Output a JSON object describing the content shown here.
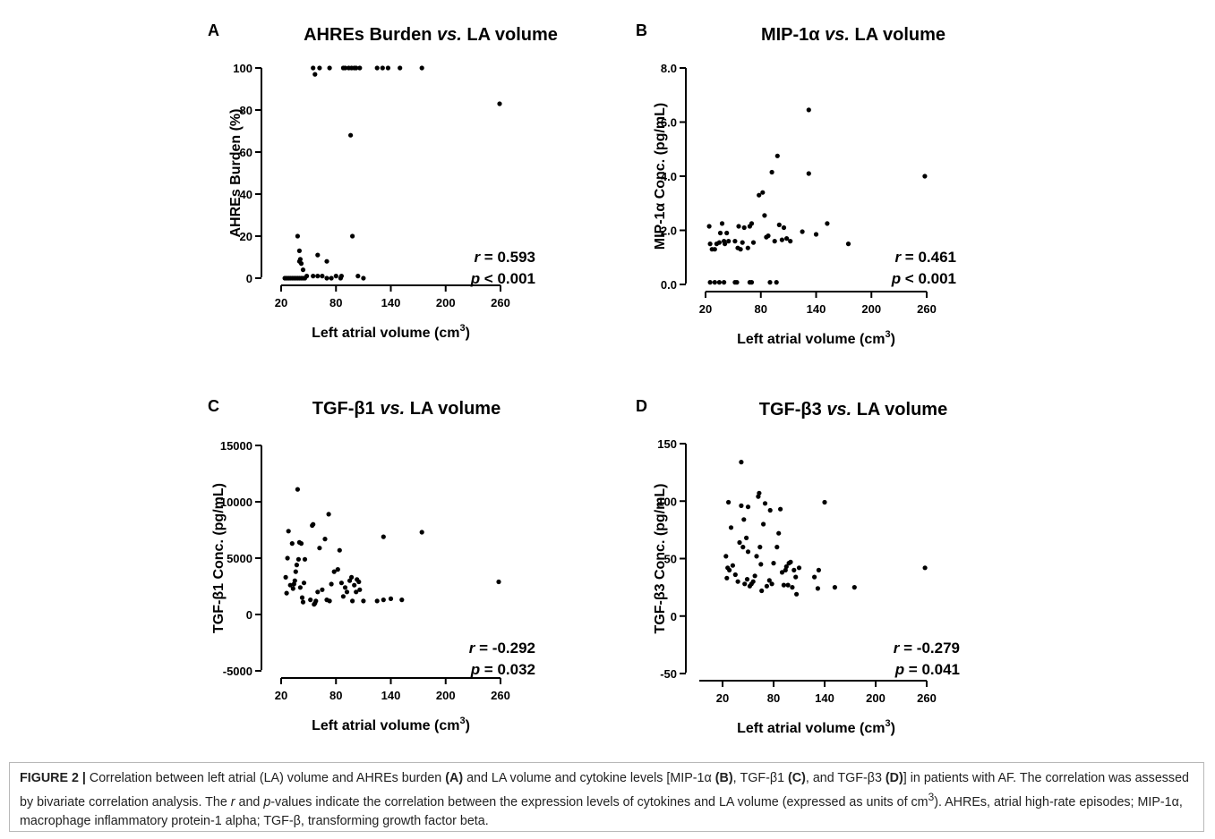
{
  "chart_data": [
    {
      "type": "scatter",
      "letter": "A",
      "title": "AHREs Burden vs. LA volume",
      "title_parts": [
        {
          "t": "AHREs Burden "
        },
        {
          "t": "vs.",
          "i": true
        },
        {
          "t": " LA volume"
        }
      ],
      "xlabel": "Left atrial volume (cm3)",
      "ylabel": "AHREs Burden (%)",
      "xlim": [
        20,
        260
      ],
      "ylim": [
        0,
        100
      ],
      "xticks": [
        "20",
        "80",
        "140",
        "200",
        "260"
      ],
      "yticks": [
        "0",
        "20",
        "40",
        "60",
        "80",
        "100"
      ],
      "r": "0.593",
      "p": "< 0.001",
      "points": [
        [
          24,
          0
        ],
        [
          26,
          0
        ],
        [
          28,
          0
        ],
        [
          30,
          0
        ],
        [
          32,
          0
        ],
        [
          34,
          0
        ],
        [
          36,
          0
        ],
        [
          38,
          0
        ],
        [
          40,
          0
        ],
        [
          42,
          0
        ],
        [
          44,
          0
        ],
        [
          46,
          0
        ],
        [
          48,
          1
        ],
        [
          38,
          20
        ],
        [
          40,
          13
        ],
        [
          41,
          9
        ],
        [
          42,
          7
        ],
        [
          44,
          4
        ],
        [
          40,
          8
        ],
        [
          55,
          1
        ],
        [
          60,
          1
        ],
        [
          65,
          1
        ],
        [
          70,
          0
        ],
        [
          75,
          0
        ],
        [
          80,
          1
        ],
        [
          85,
          0
        ],
        [
          86,
          1
        ],
        [
          104,
          1
        ],
        [
          110,
          0
        ],
        [
          60,
          11
        ],
        [
          70,
          8
        ],
        [
          98,
          20
        ],
        [
          96,
          68
        ],
        [
          55,
          100
        ],
        [
          57,
          97
        ],
        [
          62,
          100
        ],
        [
          73,
          100
        ],
        [
          88,
          100
        ],
        [
          90,
          100
        ],
        [
          94,
          100
        ],
        [
          97,
          100
        ],
        [
          100,
          100
        ],
        [
          102,
          100
        ],
        [
          106,
          100
        ],
        [
          125,
          100
        ],
        [
          131,
          100
        ],
        [
          137,
          100
        ],
        [
          150,
          100
        ],
        [
          174,
          100
        ],
        [
          259,
          83
        ]
      ]
    },
    {
      "type": "scatter",
      "letter": "B",
      "title": "MIP-1α vs. LA volume",
      "title_parts": [
        {
          "t": "MIP-1α "
        },
        {
          "t": "vs.",
          "i": true
        },
        {
          "t": " LA volume"
        }
      ],
      "xlabel": "Left atrial volume (cm3)",
      "ylabel": "MIP-1α Conc. (pg/mL)",
      "xlim": [
        20,
        260
      ],
      "ylim": [
        0,
        8
      ],
      "xticks": [
        "20",
        "80",
        "140",
        "200",
        "260"
      ],
      "yticks": [
        "0.0",
        "2.0",
        "4.0",
        "6.0",
        "8.0"
      ],
      "r": "0.461",
      "p": "< 0.001",
      "points": [
        [
          24,
          2.15
        ],
        [
          25,
          1.5
        ],
        [
          27,
          1.3
        ],
        [
          30,
          1.3
        ],
        [
          32,
          1.5
        ],
        [
          35,
          1.55
        ],
        [
          36,
          1.9
        ],
        [
          38,
          2.25
        ],
        [
          40,
          1.6
        ],
        [
          41,
          1.5
        ],
        [
          43,
          1.9
        ],
        [
          45,
          1.6
        ],
        [
          52,
          1.6
        ],
        [
          55,
          1.35
        ],
        [
          56,
          2.15
        ],
        [
          58,
          1.3
        ],
        [
          60,
          1.55
        ],
        [
          62,
          2.1
        ],
        [
          66,
          1.35
        ],
        [
          68,
          2.15
        ],
        [
          70,
          2.25
        ],
        [
          72,
          1.55
        ],
        [
          78,
          3.3
        ],
        [
          82,
          3.4
        ],
        [
          84,
          2.55
        ],
        [
          86,
          1.75
        ],
        [
          88,
          1.8
        ],
        [
          92,
          4.15
        ],
        [
          95,
          1.6
        ],
        [
          98,
          4.75
        ],
        [
          100,
          2.2
        ],
        [
          103,
          1.65
        ],
        [
          105,
          2.1
        ],
        [
          108,
          1.7
        ],
        [
          112,
          1.6
        ],
        [
          125,
          1.95
        ],
        [
          132,
          4.1
        ],
        [
          132,
          6.45
        ],
        [
          140,
          1.85
        ],
        [
          152,
          2.25
        ],
        [
          175,
          1.5
        ],
        [
          258,
          4.0
        ],
        [
          25,
          0.08
        ],
        [
          30,
          0.08
        ],
        [
          35,
          0.08
        ],
        [
          40,
          0.08
        ],
        [
          52,
          0.08
        ],
        [
          54,
          0.08
        ],
        [
          68,
          0.08
        ],
        [
          70,
          0.08
        ],
        [
          90,
          0.08
        ],
        [
          97,
          0.08
        ]
      ]
    },
    {
      "type": "scatter",
      "letter": "C",
      "title": "TGF-β1 vs. LA volume",
      "title_parts": [
        {
          "t": "TGF-β1 "
        },
        {
          "t": "vs.",
          "i": true
        },
        {
          "t": " LA volume"
        }
      ],
      "xlabel": "Left atrial volume (cm3)",
      "ylabel": "TGF-β1 Conc. (pg/mL)",
      "xlim": [
        20,
        260
      ],
      "ylim": [
        -5000,
        15000
      ],
      "xticks": [
        "20",
        "80",
        "140",
        "200",
        "260"
      ],
      "yticks": [
        "-5000",
        "0",
        "5000",
        "10000",
        "15000"
      ],
      "r": "-0.292",
      "p": " 0.032",
      "points": [
        [
          25,
          3300
        ],
        [
          26,
          1900
        ],
        [
          27,
          5000
        ],
        [
          28,
          7400
        ],
        [
          30,
          2600
        ],
        [
          32,
          6300
        ],
        [
          33,
          2300
        ],
        [
          34,
          2700
        ],
        [
          35,
          3000
        ],
        [
          36,
          3800
        ],
        [
          37,
          4400
        ],
        [
          38,
          11100
        ],
        [
          39,
          4900
        ],
        [
          40,
          6400
        ],
        [
          41,
          2400
        ],
        [
          42,
          6300
        ],
        [
          43,
          1500
        ],
        [
          44,
          1100
        ],
        [
          45,
          2800
        ],
        [
          46,
          4900
        ],
        [
          52,
          1300
        ],
        [
          54,
          7900
        ],
        [
          55,
          8000
        ],
        [
          56,
          900
        ],
        [
          57,
          1000
        ],
        [
          58,
          1200
        ],
        [
          60,
          2000
        ],
        [
          62,
          5900
        ],
        [
          65,
          2200
        ],
        [
          68,
          6700
        ],
        [
          70,
          1300
        ],
        [
          72,
          8900
        ],
        [
          73,
          1200
        ],
        [
          75,
          2700
        ],
        [
          78,
          3800
        ],
        [
          82,
          4000
        ],
        [
          84,
          5700
        ],
        [
          86,
          2800
        ],
        [
          88,
          1600
        ],
        [
          90,
          2400
        ],
        [
          92,
          2000
        ],
        [
          95,
          3000
        ],
        [
          97,
          3300
        ],
        [
          98,
          1200
        ],
        [
          100,
          2600
        ],
        [
          102,
          2000
        ],
        [
          103,
          3100
        ],
        [
          105,
          2900
        ],
        [
          106,
          2200
        ],
        [
          110,
          1200
        ],
        [
          125,
          1200
        ],
        [
          132,
          6900
        ],
        [
          132,
          1300
        ],
        [
          140,
          1400
        ],
        [
          152,
          1300
        ],
        [
          174,
          7300
        ],
        [
          258,
          2900
        ]
      ]
    },
    {
      "type": "scatter",
      "letter": "D",
      "title": "TGF-β3 vs. LA volume",
      "title_parts": [
        {
          "t": "TGF-β3 "
        },
        {
          "t": "vs.",
          "i": true
        },
        {
          "t": " LA volume"
        }
      ],
      "xlabel": "Left atrial volume (cm3)",
      "ylabel": "TGF-β3 Conc. (pg/mL)",
      "xlim": [
        0,
        260
      ],
      "ylim": [
        -50,
        150
      ],
      "xticks": [
        "20",
        "80",
        "140",
        "200",
        "260"
      ],
      "yticks": [
        "-50",
        "0",
        "50",
        "100",
        "150"
      ],
      "r": "-0.279",
      "p": " 0.041",
      "points": [
        [
          24,
          52
        ],
        [
          25,
          33
        ],
        [
          26,
          42
        ],
        [
          27,
          99
        ],
        [
          28,
          40
        ],
        [
          30,
          77
        ],
        [
          32,
          44
        ],
        [
          35,
          36
        ],
        [
          38,
          30
        ],
        [
          40,
          64
        ],
        [
          42,
          96
        ],
        [
          42,
          134
        ],
        [
          44,
          60
        ],
        [
          45,
          84
        ],
        [
          46,
          28
        ],
        [
          48,
          68
        ],
        [
          49,
          32
        ],
        [
          50,
          56
        ],
        [
          50,
          95
        ],
        [
          52,
          26
        ],
        [
          54,
          28
        ],
        [
          56,
          30
        ],
        [
          58,
          35
        ],
        [
          60,
          52
        ],
        [
          62,
          104
        ],
        [
          63,
          107
        ],
        [
          64,
          60
        ],
        [
          65,
          45
        ],
        [
          66,
          22
        ],
        [
          68,
          80
        ],
        [
          70,
          98
        ],
        [
          72,
          26
        ],
        [
          75,
          31
        ],
        [
          76,
          92
        ],
        [
          78,
          28
        ],
        [
          80,
          46
        ],
        [
          84,
          60
        ],
        [
          86,
          72
        ],
        [
          88,
          93
        ],
        [
          90,
          38
        ],
        [
          92,
          27
        ],
        [
          94,
          40
        ],
        [
          95,
          43
        ],
        [
          97,
          27
        ],
        [
          98,
          46
        ],
        [
          100,
          47
        ],
        [
          102,
          25
        ],
        [
          104,
          40
        ],
        [
          106,
          34
        ],
        [
          107,
          19
        ],
        [
          110,
          42
        ],
        [
          128,
          34
        ],
        [
          132,
          24
        ],
        [
          133,
          40
        ],
        [
          140,
          99
        ],
        [
          152,
          25
        ],
        [
          175,
          25
        ],
        [
          258,
          42
        ]
      ]
    }
  ],
  "caption": {
    "label": "FIGURE 2 |",
    "parts": [
      {
        "t": " Correlation between left atrial (LA) volume and AHREs burden "
      },
      {
        "t": "(A)",
        "b": true
      },
      {
        "t": " and LA volume and cytokine levels [MIP-1α "
      },
      {
        "t": "(B)",
        "b": true
      },
      {
        "t": ", TGF-β1 "
      },
      {
        "t": "(C)",
        "b": true
      },
      {
        "t": ", and TGF-β3 "
      },
      {
        "t": "(D)",
        "b": true
      },
      {
        "t": "] in patients with AF. The correlation was assessed by bivariate correlation analysis. The "
      },
      {
        "t": "r",
        "i": true
      },
      {
        "t": " and "
      },
      {
        "t": "p",
        "i": true
      },
      {
        "t": "-values indicate the correlation between the expression levels of cytokines and LA volume (expressed as units of cm"
      },
      {
        "t": "3",
        "sup": true
      },
      {
        "t": "). AHREs, atrial high-rate episodes; MIP-1α, macrophage inflammatory protein-1 alpha; TGF-β, transforming growth factor beta."
      }
    ]
  }
}
